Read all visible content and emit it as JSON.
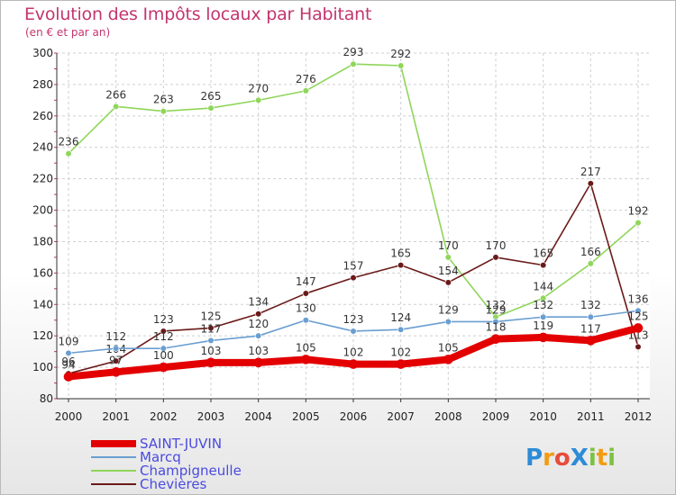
{
  "title": "Evolution des Impôts locaux par Habitant",
  "subtitle": "(en € et par an)",
  "logo": {
    "text": "ProXiti",
    "letters": [
      "P",
      "r",
      "o",
      "X",
      "i",
      "t",
      "i"
    ],
    "colors": [
      "#2e8bd6",
      "#f39c12",
      "#e74c3c",
      "#2e8bd6",
      "#7cc242",
      "#f39c12",
      "#7cc242"
    ]
  },
  "chart_data": {
    "type": "line",
    "x": [
      "2000",
      "2001",
      "2002",
      "2003",
      "2004",
      "2005",
      "2006",
      "2007",
      "2008",
      "2009",
      "2010",
      "2011",
      "2012"
    ],
    "ylim": [
      80,
      300
    ],
    "yticks": [
      80,
      100,
      120,
      140,
      160,
      180,
      200,
      220,
      240,
      260,
      280,
      300
    ],
    "grid": true,
    "legend_position": "bottom-left",
    "series": [
      {
        "name": "Champigneulle",
        "color": "#8fd65a",
        "values": [
          236,
          266,
          263,
          265,
          270,
          276,
          293,
          292,
          170,
          132,
          144,
          166,
          192
        ]
      },
      {
        "name": "Chevières",
        "color": "#6b1a1a",
        "values": [
          96,
          104,
          123,
          125,
          134,
          147,
          157,
          165,
          154,
          170,
          165,
          217,
          113
        ]
      },
      {
        "name": "Marcq",
        "color": "#6a9ed1",
        "values": [
          109,
          112,
          112,
          117,
          120,
          130,
          123,
          124,
          129,
          129,
          132,
          132,
          136
        ]
      },
      {
        "name": "SAINT-JUVIN",
        "color": "#e30000",
        "values": [
          94,
          97,
          100,
          103,
          103,
          105,
          102,
          102,
          105,
          118,
          119,
          117,
          125
        ]
      }
    ],
    "legend_order": [
      "SAINT-JUVIN",
      "Marcq",
      "Champigneulle",
      "Chevières"
    ]
  }
}
